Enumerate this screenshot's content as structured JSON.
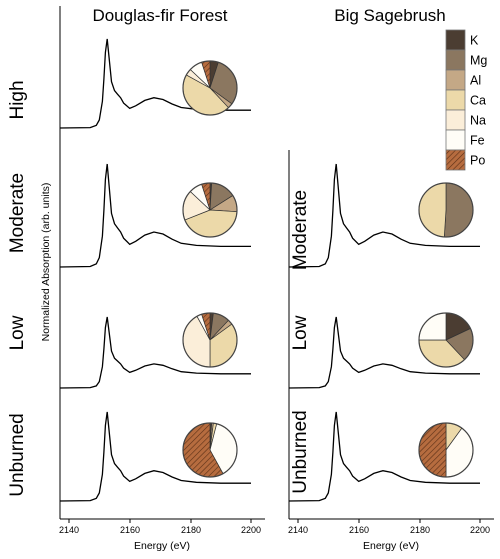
{
  "figure": {
    "ylabel": "Normalized Absorption (arb. units)",
    "xlabel": "Energy (eV)",
    "columns": [
      "Douglas-fir Forest",
      "Big Sagebrush"
    ],
    "rows": [
      "High",
      "Moderate",
      "Low",
      "Unburned"
    ],
    "xticks": [
      "2140",
      "2160",
      "2180",
      "2200"
    ]
  },
  "legend": {
    "placement": "top-right",
    "items": [
      {
        "label": "K",
        "color": "#4b3d32",
        "pattern": false
      },
      {
        "label": "Mg",
        "color": "#8b7760",
        "pattern": false
      },
      {
        "label": "Al",
        "color": "#c4a886",
        "pattern": false
      },
      {
        "label": "Ca",
        "color": "#ecd9a9",
        "pattern": false
      },
      {
        "label": "Na",
        "color": "#fbeed9",
        "pattern": false
      },
      {
        "label": "Fe",
        "color": "#fffdf7",
        "pattern": false
      },
      {
        "label": "Po",
        "color": "#b66c3f",
        "pattern": true
      }
    ]
  },
  "chart_data": {
    "type": "line",
    "xlabel": "Energy (eV)",
    "ylabel": "Normalized Absorption (arb. units)",
    "xlim": [
      2137,
      2202
    ],
    "xticks": [
      2140,
      2160,
      2180,
      2200
    ],
    "grid": false,
    "spectrum_shape": {
      "x": [
        2137,
        2147,
        2149,
        2150,
        2151,
        2151.5,
        2152,
        2152.6,
        2153.2,
        2154,
        2155,
        2156,
        2157,
        2158,
        2160,
        2162,
        2165,
        2168,
        2171,
        2174,
        2177,
        2182,
        2190,
        2200
      ],
      "y": [
        0,
        0.005,
        0.03,
        0.09,
        0.3,
        0.55,
        0.85,
        1.0,
        0.8,
        0.52,
        0.42,
        0.38,
        0.34,
        0.28,
        0.22,
        0.25,
        0.31,
        0.34,
        0.32,
        0.27,
        0.23,
        0.21,
        0.2,
        0.2
      ]
    },
    "panels": [
      {
        "column": "Douglas-fir Forest",
        "row": "High",
        "pie": [
          {
            "label": "K",
            "value": 5
          },
          {
            "label": "Mg",
            "value": 30
          },
          {
            "label": "Al",
            "value": 3
          },
          {
            "label": "Ca",
            "value": 45
          },
          {
            "label": "Na",
            "value": 4
          },
          {
            "label": "Fe",
            "value": 8
          },
          {
            "label": "Po",
            "value": 5
          }
        ]
      },
      {
        "column": "Douglas-fir Forest",
        "row": "Moderate",
        "pie": [
          {
            "label": "K",
            "value": 1
          },
          {
            "label": "Mg",
            "value": 15
          },
          {
            "label": "Al",
            "value": 10
          },
          {
            "label": "Ca",
            "value": 43
          },
          {
            "label": "Na",
            "value": 18
          },
          {
            "label": "Fe",
            "value": 8
          },
          {
            "label": "Po",
            "value": 5
          }
        ]
      },
      {
        "column": "Douglas-fir Forest",
        "row": "Low",
        "pie": [
          {
            "label": "K",
            "value": 2
          },
          {
            "label": "Mg",
            "value": 10
          },
          {
            "label": "Al",
            "value": 3
          },
          {
            "label": "Ca",
            "value": 35
          },
          {
            "label": "Na",
            "value": 42
          },
          {
            "label": "Fe",
            "value": 3
          },
          {
            "label": "Po",
            "value": 5
          }
        ]
      },
      {
        "column": "Douglas-fir Forest",
        "row": "Unburned",
        "pie": [
          {
            "label": "K",
            "value": 1
          },
          {
            "label": "Mg",
            "value": 0
          },
          {
            "label": "Al",
            "value": 1
          },
          {
            "label": "Ca",
            "value": 2
          },
          {
            "label": "Na",
            "value": 0
          },
          {
            "label": "Fe",
            "value": 38
          },
          {
            "label": "Po",
            "value": 58
          }
        ]
      },
      {
        "column": "Big Sagebrush",
        "row": "Moderate",
        "pie": [
          {
            "label": "K",
            "value": 0
          },
          {
            "label": "Mg",
            "value": 51
          },
          {
            "label": "Al",
            "value": 0
          },
          {
            "label": "Ca",
            "value": 49
          },
          {
            "label": "Na",
            "value": 0
          },
          {
            "label": "Fe",
            "value": 0
          },
          {
            "label": "Po",
            "value": 0
          }
        ]
      },
      {
        "column": "Big Sagebrush",
        "row": "Low",
        "pie": [
          {
            "label": "K",
            "value": 18
          },
          {
            "label": "Mg",
            "value": 20
          },
          {
            "label": "Al",
            "value": 0
          },
          {
            "label": "Ca",
            "value": 37
          },
          {
            "label": "Na",
            "value": 0
          },
          {
            "label": "Fe",
            "value": 25
          },
          {
            "label": "Po",
            "value": 0
          }
        ]
      },
      {
        "column": "Big Sagebrush",
        "row": "Unburned",
        "pie": [
          {
            "label": "K",
            "value": 0
          },
          {
            "label": "Mg",
            "value": 0
          },
          {
            "label": "Al",
            "value": 0
          },
          {
            "label": "Ca",
            "value": 10
          },
          {
            "label": "Na",
            "value": 0
          },
          {
            "label": "Fe",
            "value": 40
          },
          {
            "label": "Po",
            "value": 50
          }
        ]
      }
    ]
  }
}
